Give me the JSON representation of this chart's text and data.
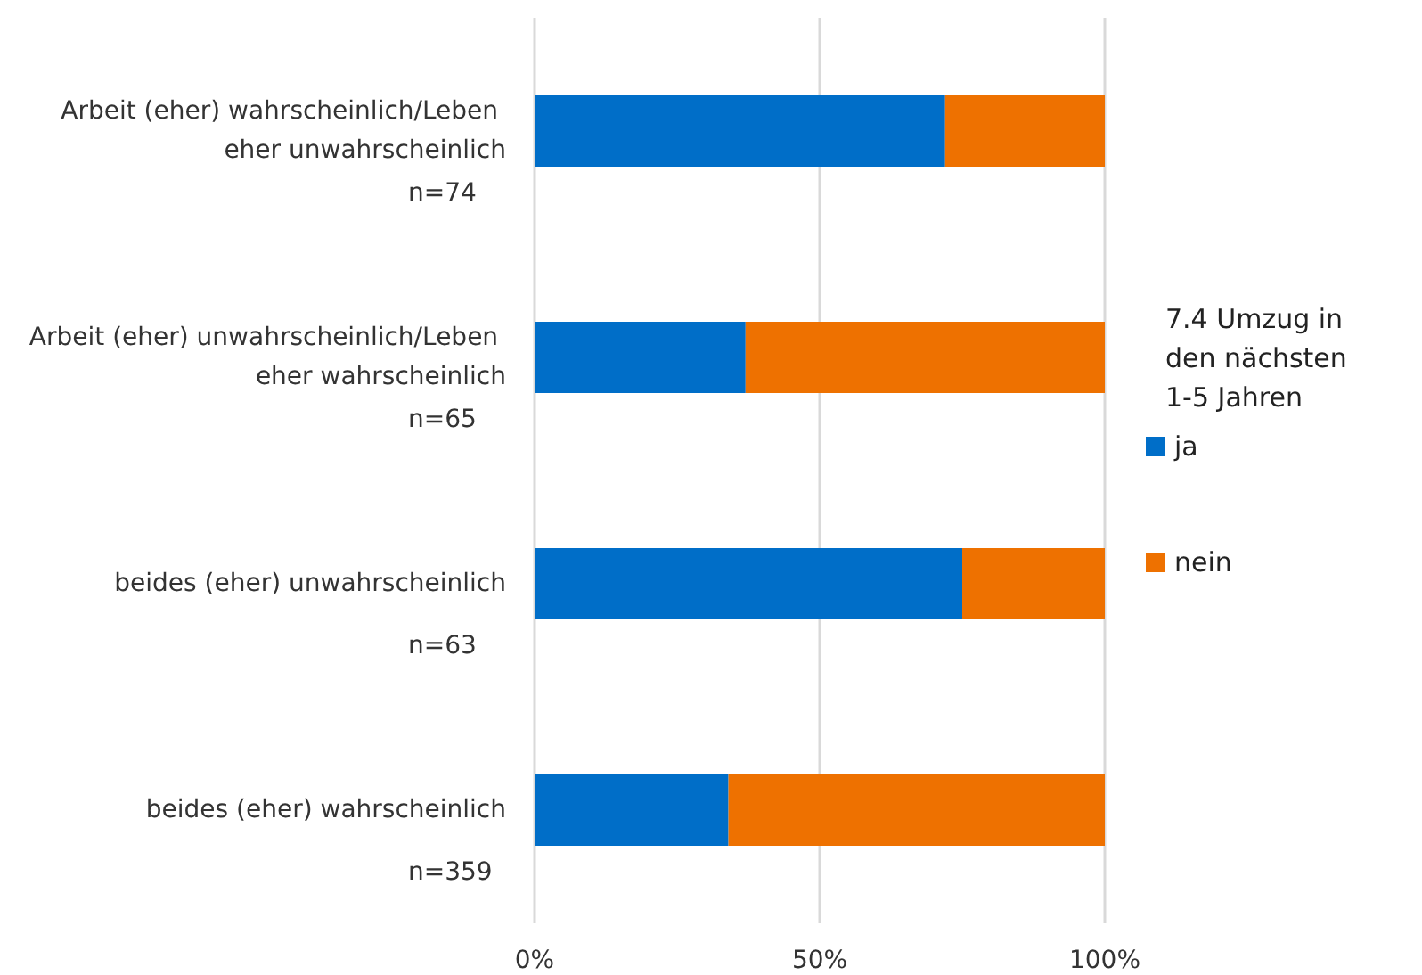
{
  "chart_data": {
    "type": "bar",
    "orientation": "horizontal",
    "stacked": true,
    "categories": [
      "Arbeit (eher) wahrscheinlich/Leben eher unwahrscheinlich",
      "Arbeit (eher) unwahrscheinlich/Leben eher wahrscheinlich",
      "beides (eher) unwahrscheinlich",
      "beides (eher) wahrscheinlich"
    ],
    "series": [
      {
        "name": "ja",
        "color": "#006ec8",
        "values": [
          72,
          37,
          75,
          34
        ]
      },
      {
        "name": "nein",
        "color": "#ee7100",
        "values": [
          28,
          63,
          25,
          66
        ]
      }
    ],
    "xlim": [
      0,
      100
    ],
    "xticks": [
      {
        "value": 0,
        "label": "0%"
      },
      {
        "value": 50,
        "label": "50%"
      },
      {
        "value": 100,
        "label": "100%"
      }
    ],
    "grid": "x",
    "legend": "right",
    "legend_title": "7.4 Umzug in den nächsten 1-5 Jahren",
    "annotations": [
      "n=74",
      "n=65",
      "n=63",
      "n=359"
    ]
  }
}
